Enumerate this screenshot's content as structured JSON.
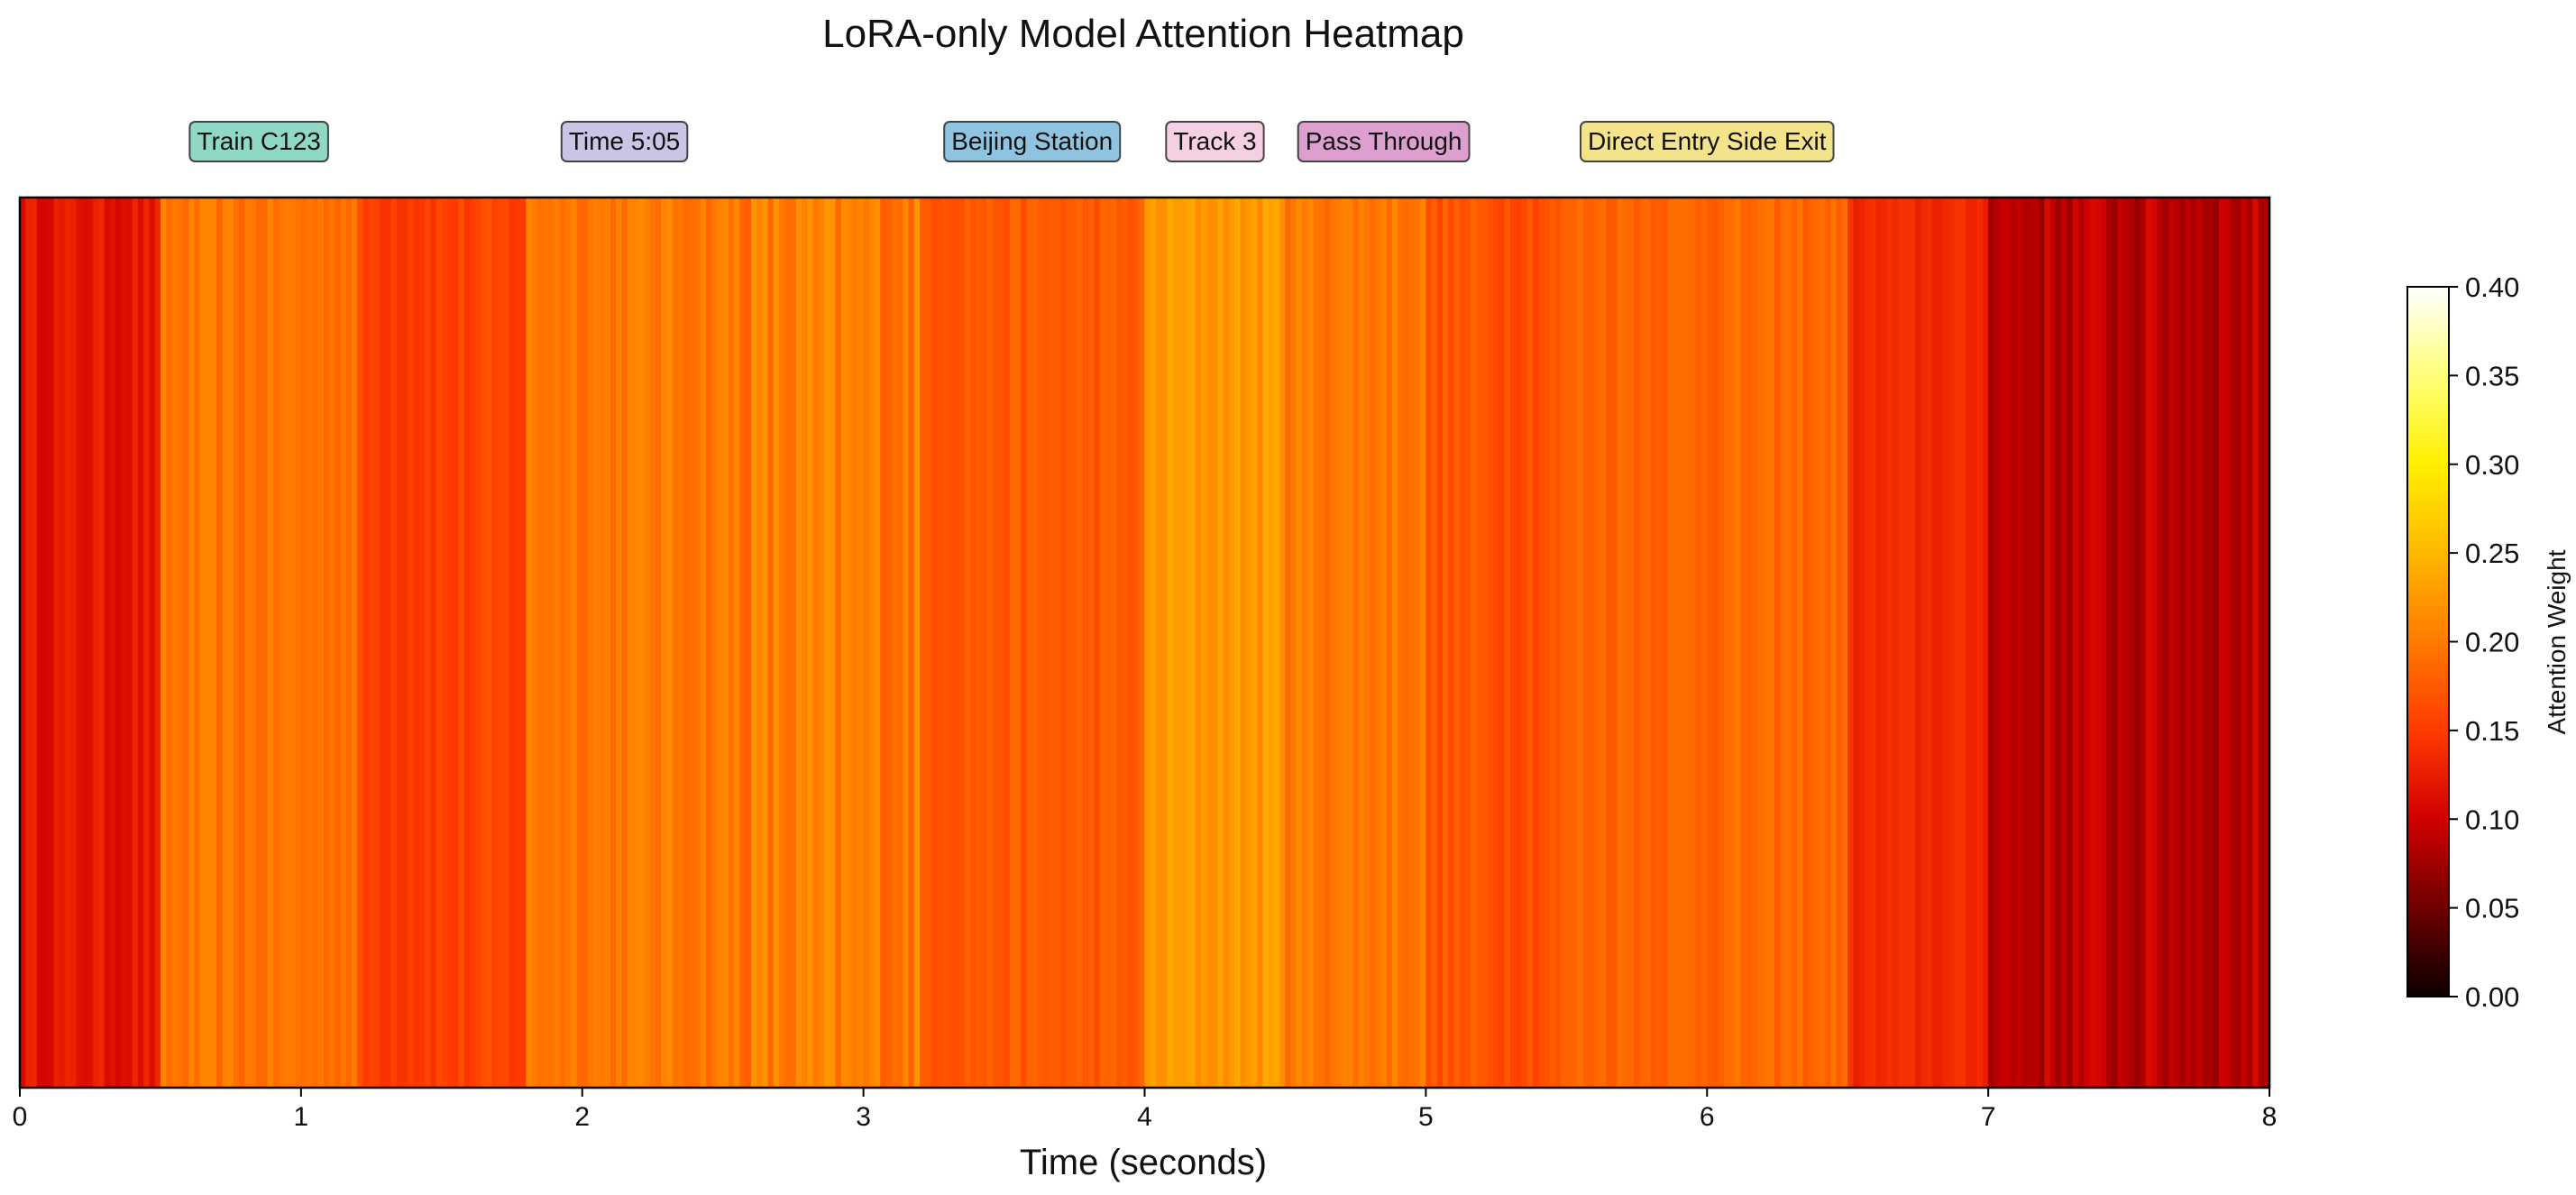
{
  "chart_data": {
    "type": "heatmap",
    "title": "LoRA-only Model Attention Heatmap",
    "xlabel": "Time (seconds)",
    "colorbar_label": "Attention Weight",
    "colormap": "hot",
    "xlim": [
      0,
      8
    ],
    "x_ticks": [
      "0",
      "1",
      "2",
      "3",
      "4",
      "5",
      "6",
      "7",
      "8"
    ],
    "colorbar_range": [
      0,
      0.4
    ],
    "colorbar_ticks": [
      "0.00",
      "0.05",
      "0.10",
      "0.15",
      "0.20",
      "0.25",
      "0.30",
      "0.35",
      "0.40"
    ],
    "segments": [
      {
        "start": 0.0,
        "end": 0.5,
        "mean_weight": 0.12,
        "jitter": 0.015
      },
      {
        "start": 0.5,
        "end": 1.2,
        "mean_weight": 0.195,
        "jitter": 0.015
      },
      {
        "start": 1.2,
        "end": 1.8,
        "mean_weight": 0.155,
        "jitter": 0.015
      },
      {
        "start": 1.8,
        "end": 2.5,
        "mean_weight": 0.2,
        "jitter": 0.015
      },
      {
        "start": 2.5,
        "end": 3.2,
        "mean_weight": 0.2,
        "jitter": 0.025
      },
      {
        "start": 3.2,
        "end": 4.0,
        "mean_weight": 0.175,
        "jitter": 0.012
      },
      {
        "start": 4.0,
        "end": 4.5,
        "mean_weight": 0.225,
        "jitter": 0.015
      },
      {
        "start": 4.5,
        "end": 5.0,
        "mean_weight": 0.2,
        "jitter": 0.015
      },
      {
        "start": 5.0,
        "end": 5.5,
        "mean_weight": 0.17,
        "jitter": 0.015
      },
      {
        "start": 5.5,
        "end": 6.5,
        "mean_weight": 0.185,
        "jitter": 0.012
      },
      {
        "start": 6.5,
        "end": 7.0,
        "mean_weight": 0.135,
        "jitter": 0.01
      },
      {
        "start": 7.0,
        "end": 8.0,
        "mean_weight": 0.09,
        "jitter": 0.02
      }
    ],
    "annotations": [
      {
        "label": "Train C123",
        "start": 0.5,
        "end": 1.2,
        "color": "#8fd8c6"
      },
      {
        "label": "Time 5:05",
        "start": 1.8,
        "end": 2.5,
        "color": "#c9c5e4"
      },
      {
        "label": "Beijing Station",
        "start": 3.2,
        "end": 4.0,
        "color": "#8ec4e0"
      },
      {
        "label": "Track 3",
        "start": 4.0,
        "end": 4.5,
        "color": "#f5cfe2"
      },
      {
        "label": "Pass Through",
        "start": 4.5,
        "end": 5.2,
        "color": "#dd9fcf"
      },
      {
        "label": "Direct Entry Side Exit",
        "start": 5.5,
        "end": 6.5,
        "color": "#f3e38a"
      }
    ]
  }
}
